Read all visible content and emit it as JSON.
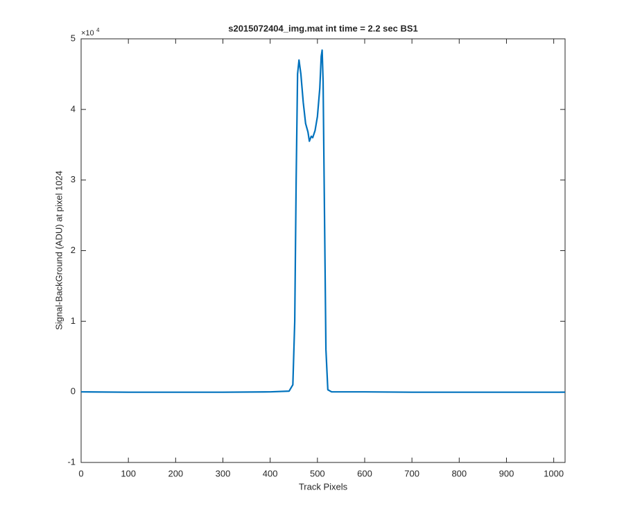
{
  "chart_data": {
    "type": "line",
    "title": "s2015072404_img.mat int time = 2.2 sec   BS1",
    "xlabel": "Track Pixels",
    "ylabel": "Signal-BackGround (ADU) at pixel 1024",
    "y_exponent": {
      "base": "×10",
      "power": "4"
    },
    "x": [
      0,
      100,
      200,
      300,
      400,
      440,
      448,
      452,
      455,
      458,
      461,
      465,
      470,
      475,
      480,
      483,
      487,
      490,
      495,
      500,
      505,
      508,
      510,
      512,
      515,
      518,
      522,
      530,
      600,
      700,
      800,
      900,
      1024
    ],
    "series": [
      {
        "color": "#0072bd",
        "values": [
          0,
          -50,
          -50,
          -50,
          0,
          100,
          1000,
          10000,
          30000,
          45000,
          47000,
          45000,
          41000,
          38000,
          36800,
          35500,
          36200,
          36000,
          37000,
          39000,
          43000,
          47500,
          48400,
          44000,
          25000,
          6000,
          300,
          0,
          0,
          -50,
          -50,
          -50,
          -50
        ]
      }
    ],
    "xlim": [
      0,
      1024
    ],
    "xticks": [
      0,
      100,
      200,
      300,
      400,
      500,
      600,
      700,
      800,
      900,
      1000
    ],
    "ylim": [
      -10000,
      50000
    ],
    "yticks": [
      {
        "value": -10000,
        "label": "-1"
      },
      {
        "value": 0,
        "label": "0"
      },
      {
        "value": 10000,
        "label": "1"
      },
      {
        "value": 20000,
        "label": "2"
      },
      {
        "value": 30000,
        "label": "3"
      },
      {
        "value": 40000,
        "label": "4"
      },
      {
        "value": 50000,
        "label": "5"
      }
    ],
    "grid": false
  }
}
